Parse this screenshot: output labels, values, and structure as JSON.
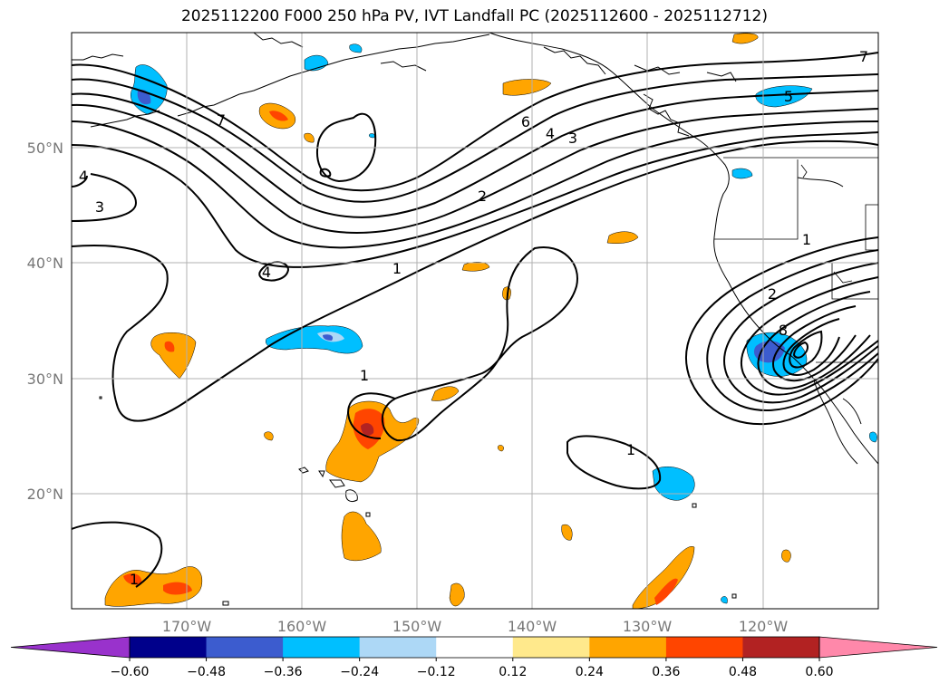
{
  "title": "2025112200 F000 250 hPa PV, IVT Landfall PC (2025112600 - 2025112712)",
  "lon_labels": [
    "170°W",
    "160°W",
    "150°W",
    "140°W",
    "130°W",
    "120°W"
  ],
  "lat_labels": [
    "50°N",
    "40°N",
    "30°N",
    "20°N"
  ],
  "contour_labels": [
    "7",
    "6",
    "4",
    "3",
    "2",
    "1",
    "4",
    "3",
    "7",
    "5",
    "1",
    "1",
    "1",
    "1",
    "4",
    "8",
    "2"
  ],
  "colorbar": {
    "ticks": [
      "−0.60",
      "−0.48",
      "−0.36",
      "−0.24",
      "−0.12",
      "0.12",
      "0.24",
      "0.36",
      "0.48",
      "0.60"
    ],
    "colors": [
      "#9932cc",
      "#00008b",
      "#3c5ccf",
      "#00bfff",
      "#add8f6",
      "#ffffff",
      "#ffe98c",
      "#ffa500",
      "#ff4500",
      "#b22222",
      "#ff88aa"
    ]
  },
  "chart_data": {
    "type": "map",
    "title": "2025112200 F000 250 hPa PV, IVT Landfall PC (2025112600 - 2025112712)",
    "projection": "PlateCarree",
    "lon_range": [
      -180,
      -110
    ],
    "lat_range": [
      10,
      60
    ],
    "lon_ticks": [
      -170,
      -160,
      -150,
      -140,
      -130,
      -120
    ],
    "lat_ticks": [
      20,
      30,
      40,
      50
    ],
    "contour_field": "250 hPa PV",
    "contour_levels": [
      1,
      2,
      3,
      4,
      5,
      6,
      7,
      8
    ],
    "shaded_field": "IVT Landfall PC",
    "shading_levels": [
      -0.6,
      -0.48,
      -0.36,
      -0.24,
      -0.12,
      0.12,
      0.24,
      0.36,
      0.48,
      0.6
    ],
    "colorbar_extend": "both"
  }
}
